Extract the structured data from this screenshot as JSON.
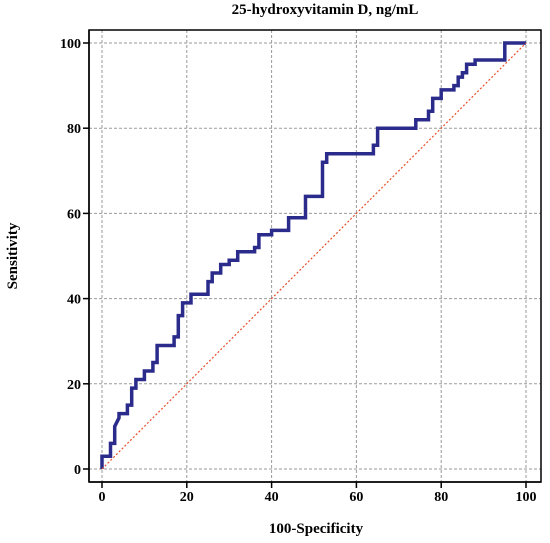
{
  "chart_data": {
    "type": "line",
    "title": "25-hydroxyvitamin D, ng/mL",
    "xlabel": "100-Specificity",
    "ylabel": "Sensitivity",
    "xlim": [
      0,
      100
    ],
    "ylim": [
      0,
      100
    ],
    "x_ticks": [
      0,
      20,
      40,
      60,
      80,
      100
    ],
    "y_ticks": [
      0,
      20,
      40,
      60,
      80,
      100
    ],
    "grid": true,
    "colors": {
      "roc": "#2b2b8c",
      "reference": "#e8502a",
      "grid": "#9a9a9a"
    },
    "series": [
      {
        "style": "step",
        "x": [
          0,
          0,
          2,
          2,
          3,
          3,
          4,
          4,
          6,
          6,
          7,
          7,
          8,
          8,
          10,
          10,
          12,
          12,
          13,
          13,
          17,
          17,
          18,
          18,
          19,
          19,
          21,
          21,
          25,
          25,
          26,
          26,
          28,
          28,
          30,
          30,
          32,
          32,
          36,
          36,
          37,
          37,
          40,
          40,
          44,
          44,
          48,
          48,
          52,
          52,
          53,
          53,
          56,
          56,
          60,
          60,
          64,
          64,
          65,
          65,
          70,
          70,
          74,
          74,
          75,
          75,
          77,
          77,
          78,
          78,
          80,
          80,
          83,
          83,
          84,
          84,
          85,
          85,
          86,
          86,
          88,
          88,
          91,
          91,
          95,
          95,
          100
        ],
        "y": [
          0,
          3,
          3,
          6,
          6,
          10,
          12,
          13,
          13,
          15,
          15,
          19,
          19,
          21,
          21,
          23,
          23,
          25,
          25,
          29,
          29,
          31,
          31,
          36,
          36,
          39,
          39,
          41,
          41,
          44,
          44,
          46,
          46,
          48,
          48,
          49,
          49,
          51,
          51,
          52,
          52,
          55,
          55,
          56,
          56,
          59,
          59,
          64,
          64,
          72,
          72,
          74,
          74,
          74,
          74,
          74,
          74,
          76,
          76,
          80,
          80,
          80,
          80,
          82,
          82,
          82,
          82,
          84,
          84,
          87,
          87,
          89,
          89,
          90,
          90,
          92,
          92,
          93,
          93,
          95,
          95,
          96,
          96,
          96,
          96,
          100,
          100
        ]
      },
      {
        "style": "reference",
        "x": [
          0,
          100
        ],
        "y": [
          0,
          100
        ]
      }
    ]
  }
}
